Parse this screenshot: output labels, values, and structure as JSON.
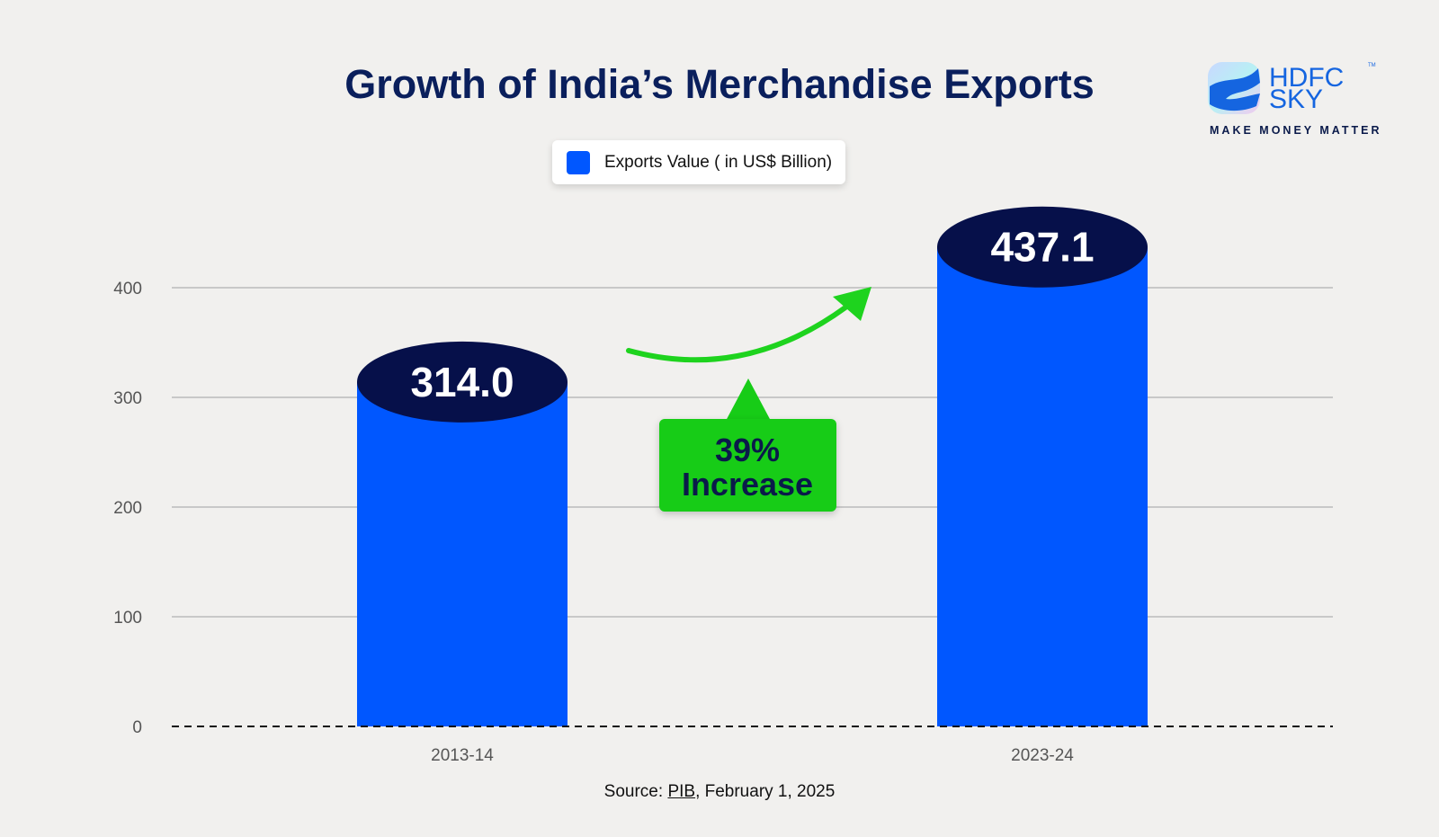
{
  "colors": {
    "bar": "#0057ff",
    "bar_top": "#06104a",
    "title": "#0a1f5c",
    "arrow": "#1ed31e",
    "callout": "#17cc17"
  },
  "logo": {
    "brand_line1": "HDFC",
    "brand_line2": "SKY",
    "tagline": "MAKE MONEY MATTER",
    "tm": "TM"
  },
  "source": {
    "prefix": "Source: ",
    "link": "PIB",
    "suffix": ", February 1, 2025"
  },
  "chart_data": {
    "type": "bar",
    "title": "Growth of India’s Merchandise Exports",
    "categories": [
      "2013-14",
      "2023-24"
    ],
    "series": [
      {
        "name": "Exports Value ( in US$ Billion)",
        "values": [
          314.0,
          437.1
        ]
      }
    ],
    "data_labels": [
      "314.0",
      "437.1"
    ],
    "ylim": [
      0,
      450
    ],
    "yticks": [
      0,
      100,
      200,
      300,
      400
    ],
    "grid": true,
    "legend_position": "top-center",
    "annotation": {
      "line1": "39%",
      "line2": "Increase"
    }
  }
}
